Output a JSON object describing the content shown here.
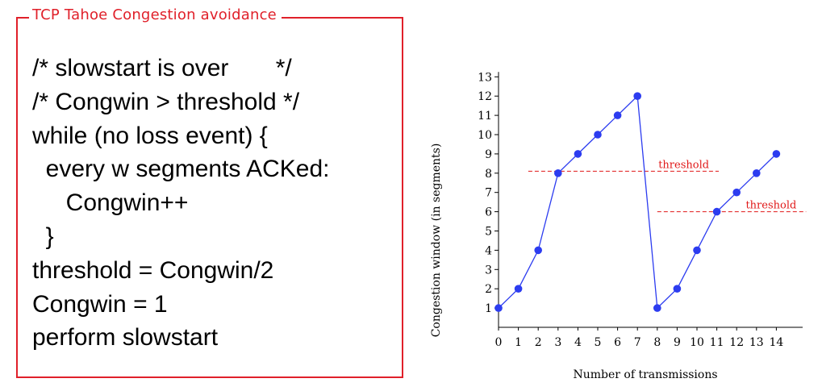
{
  "panel": {
    "title": "TCP Tahoe Congestion avoidance",
    "code_lines": [
      "/* slowstart is over       */",
      "/* Congwin > threshold */",
      "while (no loss event) {",
      "  every w segments ACKed:",
      "     Congwin++",
      "  }",
      "threshold = Congwin/2",
      "Congwin = 1",
      "perform slowstart"
    ]
  },
  "colors": {
    "frame": "#e0202a",
    "series": "#2c3cf0",
    "threshold": "#e01818"
  },
  "chart_data": {
    "type": "line",
    "title": "",
    "xlabel": "Number of transmissions",
    "ylabel": "Congestion window (in segments)",
    "xlim": [
      0,
      15
    ],
    "ylim": [
      0,
      13
    ],
    "x_ticks": [
      "0",
      "1",
      "2",
      "3",
      "4",
      "5",
      "6",
      "7",
      "8",
      "9",
      "10",
      "11",
      "12",
      "13",
      "14"
    ],
    "y_ticks": [
      "1",
      "2",
      "3",
      "4",
      "5",
      "6",
      "7",
      "8",
      "9",
      "10",
      "11",
      "12",
      "13"
    ],
    "grid": false,
    "series": [
      {
        "x": [
          0,
          1,
          2,
          3,
          4,
          5,
          6,
          7,
          8,
          9,
          10,
          11,
          12,
          13,
          14
        ],
        "y": [
          1,
          2,
          4,
          8,
          9,
          10,
          11,
          12,
          1,
          2,
          4,
          6,
          7,
          8,
          9
        ]
      }
    ],
    "annotations": [
      {
        "label": "threshold",
        "y": 8.1,
        "x_start": 1.5,
        "x_end": 11.1
      },
      {
        "label": "threshold",
        "y": 6.0,
        "x_start": 8.0,
        "x_end": 15.5
      }
    ]
  }
}
